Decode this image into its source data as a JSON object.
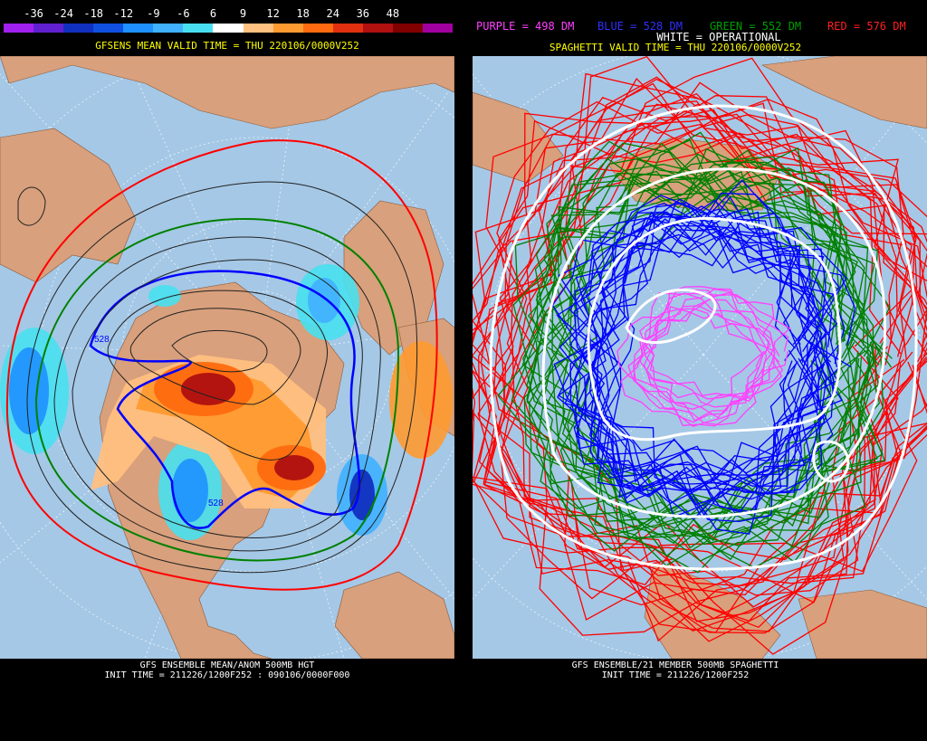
{
  "left": {
    "colorbar": {
      "labels": [
        "-36",
        "-24",
        "-18",
        "-12",
        "-9",
        "-6",
        "6",
        "9",
        "12",
        "18",
        "24",
        "36",
        "48"
      ],
      "colors": [
        "#a020f0",
        "#6020d0",
        "#1030c0",
        "#1050e0",
        "#1e90ff",
        "#40b0ff",
        "#48e0f0",
        "#ffffff",
        "#ffc080",
        "#ff9a30",
        "#ff6a10",
        "#e03010",
        "#b01010",
        "#800000",
        "#a000a0"
      ]
    },
    "title": "GFSENS MEAN VALID TIME = THU 220106/0000V252",
    "contour_label_1": "528",
    "contour_label_2": "528",
    "footer_line1": "GFS ENSEMBLE MEAN/ANOM 500MB HGT",
    "footer_line2": "INIT TIME = 211226/1200F252 : 090106/0000F000"
  },
  "right": {
    "legend": {
      "purple": "PURPLE = 498 DM",
      "blue": "BLUE = 528 DM",
      "green": "GREEN = 552 DM",
      "red": "RED = 576 DM",
      "white": "WHITE = OPERATIONAL"
    },
    "title": "SPAGHETTI VALID TIME = THU 220106/0000V252",
    "footer_line1": "GFS ENSEMBLE/21 MEMBER 500MB SPAGHETTI",
    "footer_line2": "INIT TIME = 211226/1200F252"
  },
  "colors": {
    "ocean": "#a5c8e6",
    "land": "#d8a07c",
    "purple": "#ff40ff",
    "blue": "#0000ff",
    "green": "#008000",
    "red": "#ff0000",
    "yellow": "#ffff00"
  }
}
